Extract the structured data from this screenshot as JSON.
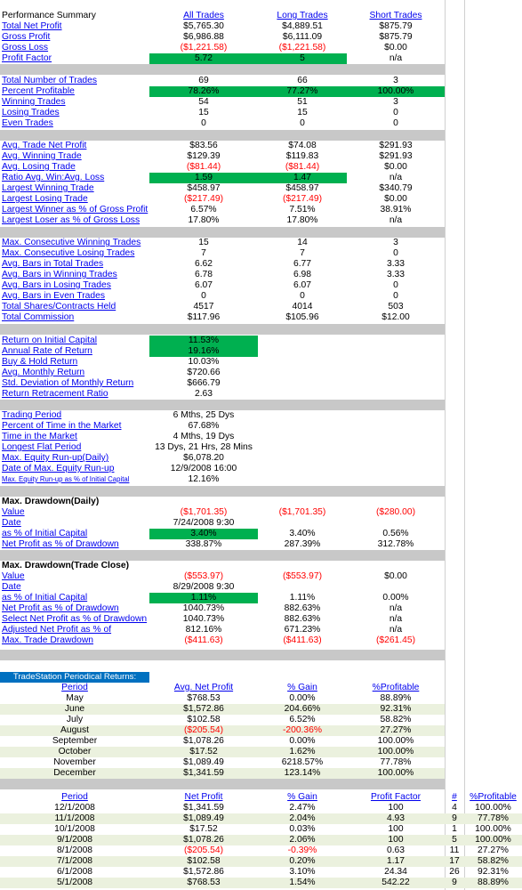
{
  "headers": {
    "all": "All Trades",
    "long": "Long Trades",
    "short": "Short Trades"
  },
  "summary": [
    {
      "label": "Performance Summary",
      "link": false
    },
    {
      "label": "Total Net Profit",
      "a": "$5,765.30",
      "b": "$4,889.51",
      "s": "$875.79"
    },
    {
      "label": "Gross Profit",
      "a": "$6,986.88",
      "b": "$6,111.09",
      "s": "$875.79"
    },
    {
      "label": "Gross Loss",
      "a": "($1,221.58)",
      "b": "($1,221.58)",
      "s": "$0.00",
      "an": true,
      "bn": true
    },
    {
      "label": "Profit Factor",
      "a": "5.72",
      "b": "5",
      "s": "n/a",
      "ag": true,
      "bg": true
    }
  ],
  "trades": [
    {
      "label": "Total Number of Trades",
      "a": "69",
      "b": "66",
      "s": "3"
    },
    {
      "label": "Percent Profitable",
      "a": "78.26%",
      "b": "77.27%",
      "s": "100.00%",
      "ag": true,
      "bg": true,
      "sg": true
    },
    {
      "label": "Winning Trades",
      "a": "54",
      "b": "51",
      "s": "3"
    },
    {
      "label": "Losing Trades",
      "a": "15",
      "b": "15",
      "s": "0"
    },
    {
      "label": "Even Trades",
      "a": "0",
      "b": "0",
      "s": "0"
    }
  ],
  "avg": [
    {
      "label": "Avg. Trade Net Profit",
      "a": "$83.56",
      "b": "$74.08",
      "s": "$291.93"
    },
    {
      "label": "Avg. Winning Trade",
      "a": "$129.39",
      "b": "$119.83",
      "s": "$291.93"
    },
    {
      "label": "Avg. Losing Trade",
      "a": "($81.44)",
      "b": "($81.44)",
      "s": "$0.00",
      "an": true,
      "bn": true
    },
    {
      "label": "Ratio Avg. Win:Avg. Loss",
      "a": "1.59",
      "b": "1.47",
      "s": "n/a",
      "ag": true,
      "bg": true
    },
    {
      "label": "Largest Winning Trade",
      "a": "$458.97",
      "b": "$458.97",
      "s": "$340.79"
    },
    {
      "label": "Largest Losing Trade",
      "a": "($217.49)",
      "b": "($217.49)",
      "s": "$0.00",
      "an": true,
      "bn": true
    },
    {
      "label": "Largest Winner as % of Gross Profit",
      "a": "6.57%",
      "b": "7.51%",
      "s": "38.91%"
    },
    {
      "label": "Largest Loser as % of Gross Loss",
      "a": "17.80%",
      "b": "17.80%",
      "s": "n/a"
    }
  ],
  "consec": [
    {
      "label": "Max. Consecutive Winning Trades",
      "a": "15",
      "b": "14",
      "s": "3"
    },
    {
      "label": "Max. Consecutive Losing Trades",
      "a": "7",
      "b": "7",
      "s": "0"
    },
    {
      "label": "Avg. Bars in Total Trades",
      "a": "6.62",
      "b": "6.77",
      "s": "3.33"
    },
    {
      "label": "Avg. Bars in Winning Trades",
      "a": "6.78",
      "b": "6.98",
      "s": "3.33"
    },
    {
      "label": "Avg. Bars in Losing Trades",
      "a": "6.07",
      "b": "6.07",
      "s": "0"
    },
    {
      "label": "Avg. Bars in Even Trades",
      "a": "0",
      "b": "0",
      "s": "0"
    },
    {
      "label": "Total Shares/Contracts Held",
      "a": "4517",
      "b": "4014",
      "s": "503"
    },
    {
      "label": "Total Commission",
      "a": "$117.96",
      "b": "$105.96",
      "s": "$12.00"
    }
  ],
  "returns": [
    {
      "label": "Return on Initial Capital",
      "a": "11.53%",
      "ag": true
    },
    {
      "label": "Annual Rate of Return",
      "a": "19.16%",
      "ag": true
    },
    {
      "label": "Buy & Hold Return",
      "a": "10.03%"
    },
    {
      "label": "Avg. Monthly Return",
      "a": "$720.66"
    },
    {
      "label": "Std. Deviation of Monthly Return",
      "a": "$666.79"
    },
    {
      "label": "Return Retracement Ratio",
      "a": "2.63"
    }
  ],
  "period": [
    {
      "label": "Trading Period",
      "a": "6 Mths, 25 Dys"
    },
    {
      "label": "Percent of Time in the Market",
      "a": "67.68%"
    },
    {
      "label": "Time in the Market",
      "a": "4 Mths, 19 Dys"
    },
    {
      "label": "Longest Flat Period",
      "a": "13 Dys, 21 Hrs, 28 Mins"
    },
    {
      "label": "Max. Equity Run-up(Daily)",
      "a": "$6,078.20"
    },
    {
      "label": "Date of Max. Equity Run-up",
      "a": "12/9/2008 16:00"
    },
    {
      "label": "Max. Equity Run-up as % of Initial Capital",
      "a": "12.16%",
      "small": true
    }
  ],
  "dd_daily_title": "Max. Drawdown(Daily)",
  "dd_daily": [
    {
      "label": "Value",
      "a": "($1,701.35)",
      "b": "($1,701.35)",
      "s": "($280.00)",
      "an": true,
      "bn": true,
      "sn": true
    },
    {
      "label": "Date",
      "a": "7/24/2008 9:30"
    },
    {
      "label": "as % of Initial Capital",
      "a": "3.40%",
      "b": "3.40%",
      "s": "0.56%",
      "ag": true
    },
    {
      "label": "Net Profit as % of Drawdown",
      "a": "338.87%",
      "b": "287.39%",
      "s": "312.78%"
    }
  ],
  "dd_trade_title": "Max. Drawdown(Trade Close)",
  "dd_trade": [
    {
      "label": "Value",
      "a": "($553.97)",
      "b": "($553.97)",
      "s": "$0.00",
      "an": true,
      "bn": true
    },
    {
      "label": "Date",
      "a": "8/29/2008 9:30"
    },
    {
      "label": "as % of Initial Capital",
      "a": "1.11%",
      "b": "1.11%",
      "s": "0.00%",
      "ag": true
    },
    {
      "label": "Net Profit as % of Drawdown",
      "a": "1040.73%",
      "b": "882.63%",
      "s": "n/a"
    },
    {
      "label": "Select Net Profit as % of Drawdown",
      "a": "1040.73%",
      "b": "882.63%",
      "s": "n/a"
    },
    {
      "label": "Adjusted Net Profit as % of",
      "a": "812.16%",
      "b": "671.23%",
      "s": "n/a"
    },
    {
      "label": "Max. Trade Drawdown",
      "a": "($411.63)",
      "b": "($411.63)",
      "s": "($261.45)",
      "an": true,
      "bn": true,
      "sn": true
    }
  ],
  "periodical": {
    "title": "TradeStation Periodical Returns:",
    "headers": {
      "period": "Period",
      "avg": "Avg. Net Profit",
      "gain": "% Gain",
      "prof": "%Profitable"
    },
    "rows": [
      {
        "p": "May",
        "a": "$768.53",
        "g": "0.00%",
        "r": "88.89%"
      },
      {
        "p": "June",
        "a": "$1,572.86",
        "g": "204.66%",
        "r": "92.31%",
        "band": true
      },
      {
        "p": "July",
        "a": "$102.58",
        "g": "6.52%",
        "r": "58.82%"
      },
      {
        "p": "August",
        "a": "($205.54)",
        "g": "-200.36%",
        "r": "27.27%",
        "band": true,
        "neg": true
      },
      {
        "p": "September",
        "a": "$1,078.26",
        "g": "0.00%",
        "r": "100.00%"
      },
      {
        "p": "October",
        "a": "$17.52",
        "g": "1.62%",
        "r": "100.00%",
        "band": true
      },
      {
        "p": "November",
        "a": "$1,089.49",
        "g": "6218.57%",
        "r": "77.78%"
      },
      {
        "p": "December",
        "a": "$1,341.59",
        "g": "123.14%",
        "r": "100.00%",
        "band": true
      }
    ]
  },
  "monthly": {
    "headers": {
      "period": "Period",
      "net": "Net Profit",
      "gain": "% Gain",
      "pf": "Profit Factor",
      "num": "#",
      "prof": "%Profitable"
    },
    "rows": [
      {
        "p": "12/1/2008",
        "n": "$1,341.59",
        "g": "2.47%",
        "f": "100",
        "k": "4",
        "r": "100.00%"
      },
      {
        "p": "11/1/2008",
        "n": "$1,089.49",
        "g": "2.04%",
        "f": "4.93",
        "k": "9",
        "r": "77.78%",
        "band": true
      },
      {
        "p": "10/1/2008",
        "n": "$17.52",
        "g": "0.03%",
        "f": "100",
        "k": "1",
        "r": "100.00%"
      },
      {
        "p": "9/1/2008",
        "n": "$1,078.26",
        "g": "2.06%",
        "f": "100",
        "k": "5",
        "r": "100.00%",
        "band": true
      },
      {
        "p": "8/1/2008",
        "n": "($205.54)",
        "g": "-0.39%",
        "f": "0.63",
        "k": "11",
        "r": "27.27%",
        "neg": true
      },
      {
        "p": "7/1/2008",
        "n": "$102.58",
        "g": "0.20%",
        "f": "1.17",
        "k": "17",
        "r": "58.82%",
        "band": true
      },
      {
        "p": "6/1/2008",
        "n": "$1,572.86",
        "g": "3.10%",
        "f": "24.34",
        "k": "26",
        "r": "92.31%"
      },
      {
        "p": "5/1/2008",
        "n": "$768.53",
        "g": "1.54%",
        "f": "542.22",
        "k": "9",
        "r": "88.89%",
        "band": true
      }
    ]
  }
}
